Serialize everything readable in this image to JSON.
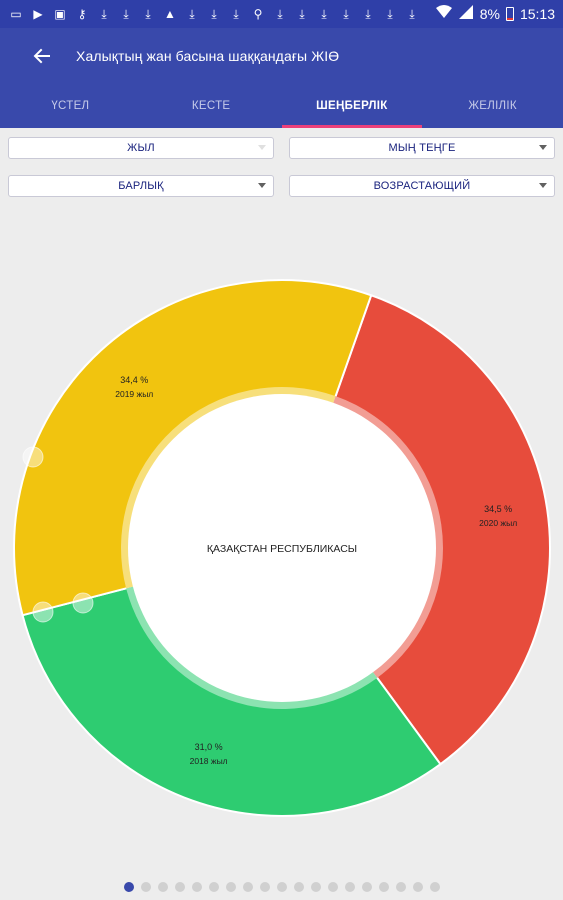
{
  "status_bar": {
    "left_icons": [
      "message-icon",
      "youtube-icon",
      "image-icon",
      "key-icon",
      "download-icon",
      "download-icon",
      "download-icon",
      "warning-icon",
      "download-icon",
      "download-icon",
      "download-icon",
      "usb-icon",
      "download-icon",
      "download-icon",
      "download-icon",
      "download-icon",
      "download-icon",
      "download-icon",
      "download-icon"
    ],
    "battery": "8%",
    "time": "15:13"
  },
  "app_bar": {
    "title": "Халықтың жан басына шаққандағы ЖІӨ"
  },
  "tabs": [
    {
      "label": "ҮСТЕЛ",
      "active": false
    },
    {
      "label": "КЕСТЕ",
      "active": false
    },
    {
      "label": "ШЕҢБЕРЛІК",
      "active": true
    },
    {
      "label": "ЖЕЛІЛІК",
      "active": false
    }
  ],
  "filters": {
    "period": "ЖЫЛ",
    "unit": "МЫҢ ТЕҢГЕ",
    "scope": "БАРЛЫҚ",
    "sort": "ВОЗРАСТАЮЩИЙ"
  },
  "chart_data": {
    "type": "pie",
    "center_label": "ҚАЗАҚСТАН РЕСПУБЛИКАСЫ",
    "slices": [
      {
        "label": "2020 жыл",
        "value": 34.5,
        "value_text": "34,5 %",
        "color": "#e74c3c"
      },
      {
        "label": "2018 жыл",
        "value": 31.0,
        "value_text": "31,0 %",
        "color": "#2ecc71"
      },
      {
        "label": "2019 жыл",
        "value": 34.4,
        "value_text": "34,4 %",
        "color": "#f1c40f"
      }
    ]
  },
  "pager": {
    "total": 19,
    "active_index": 0
  }
}
